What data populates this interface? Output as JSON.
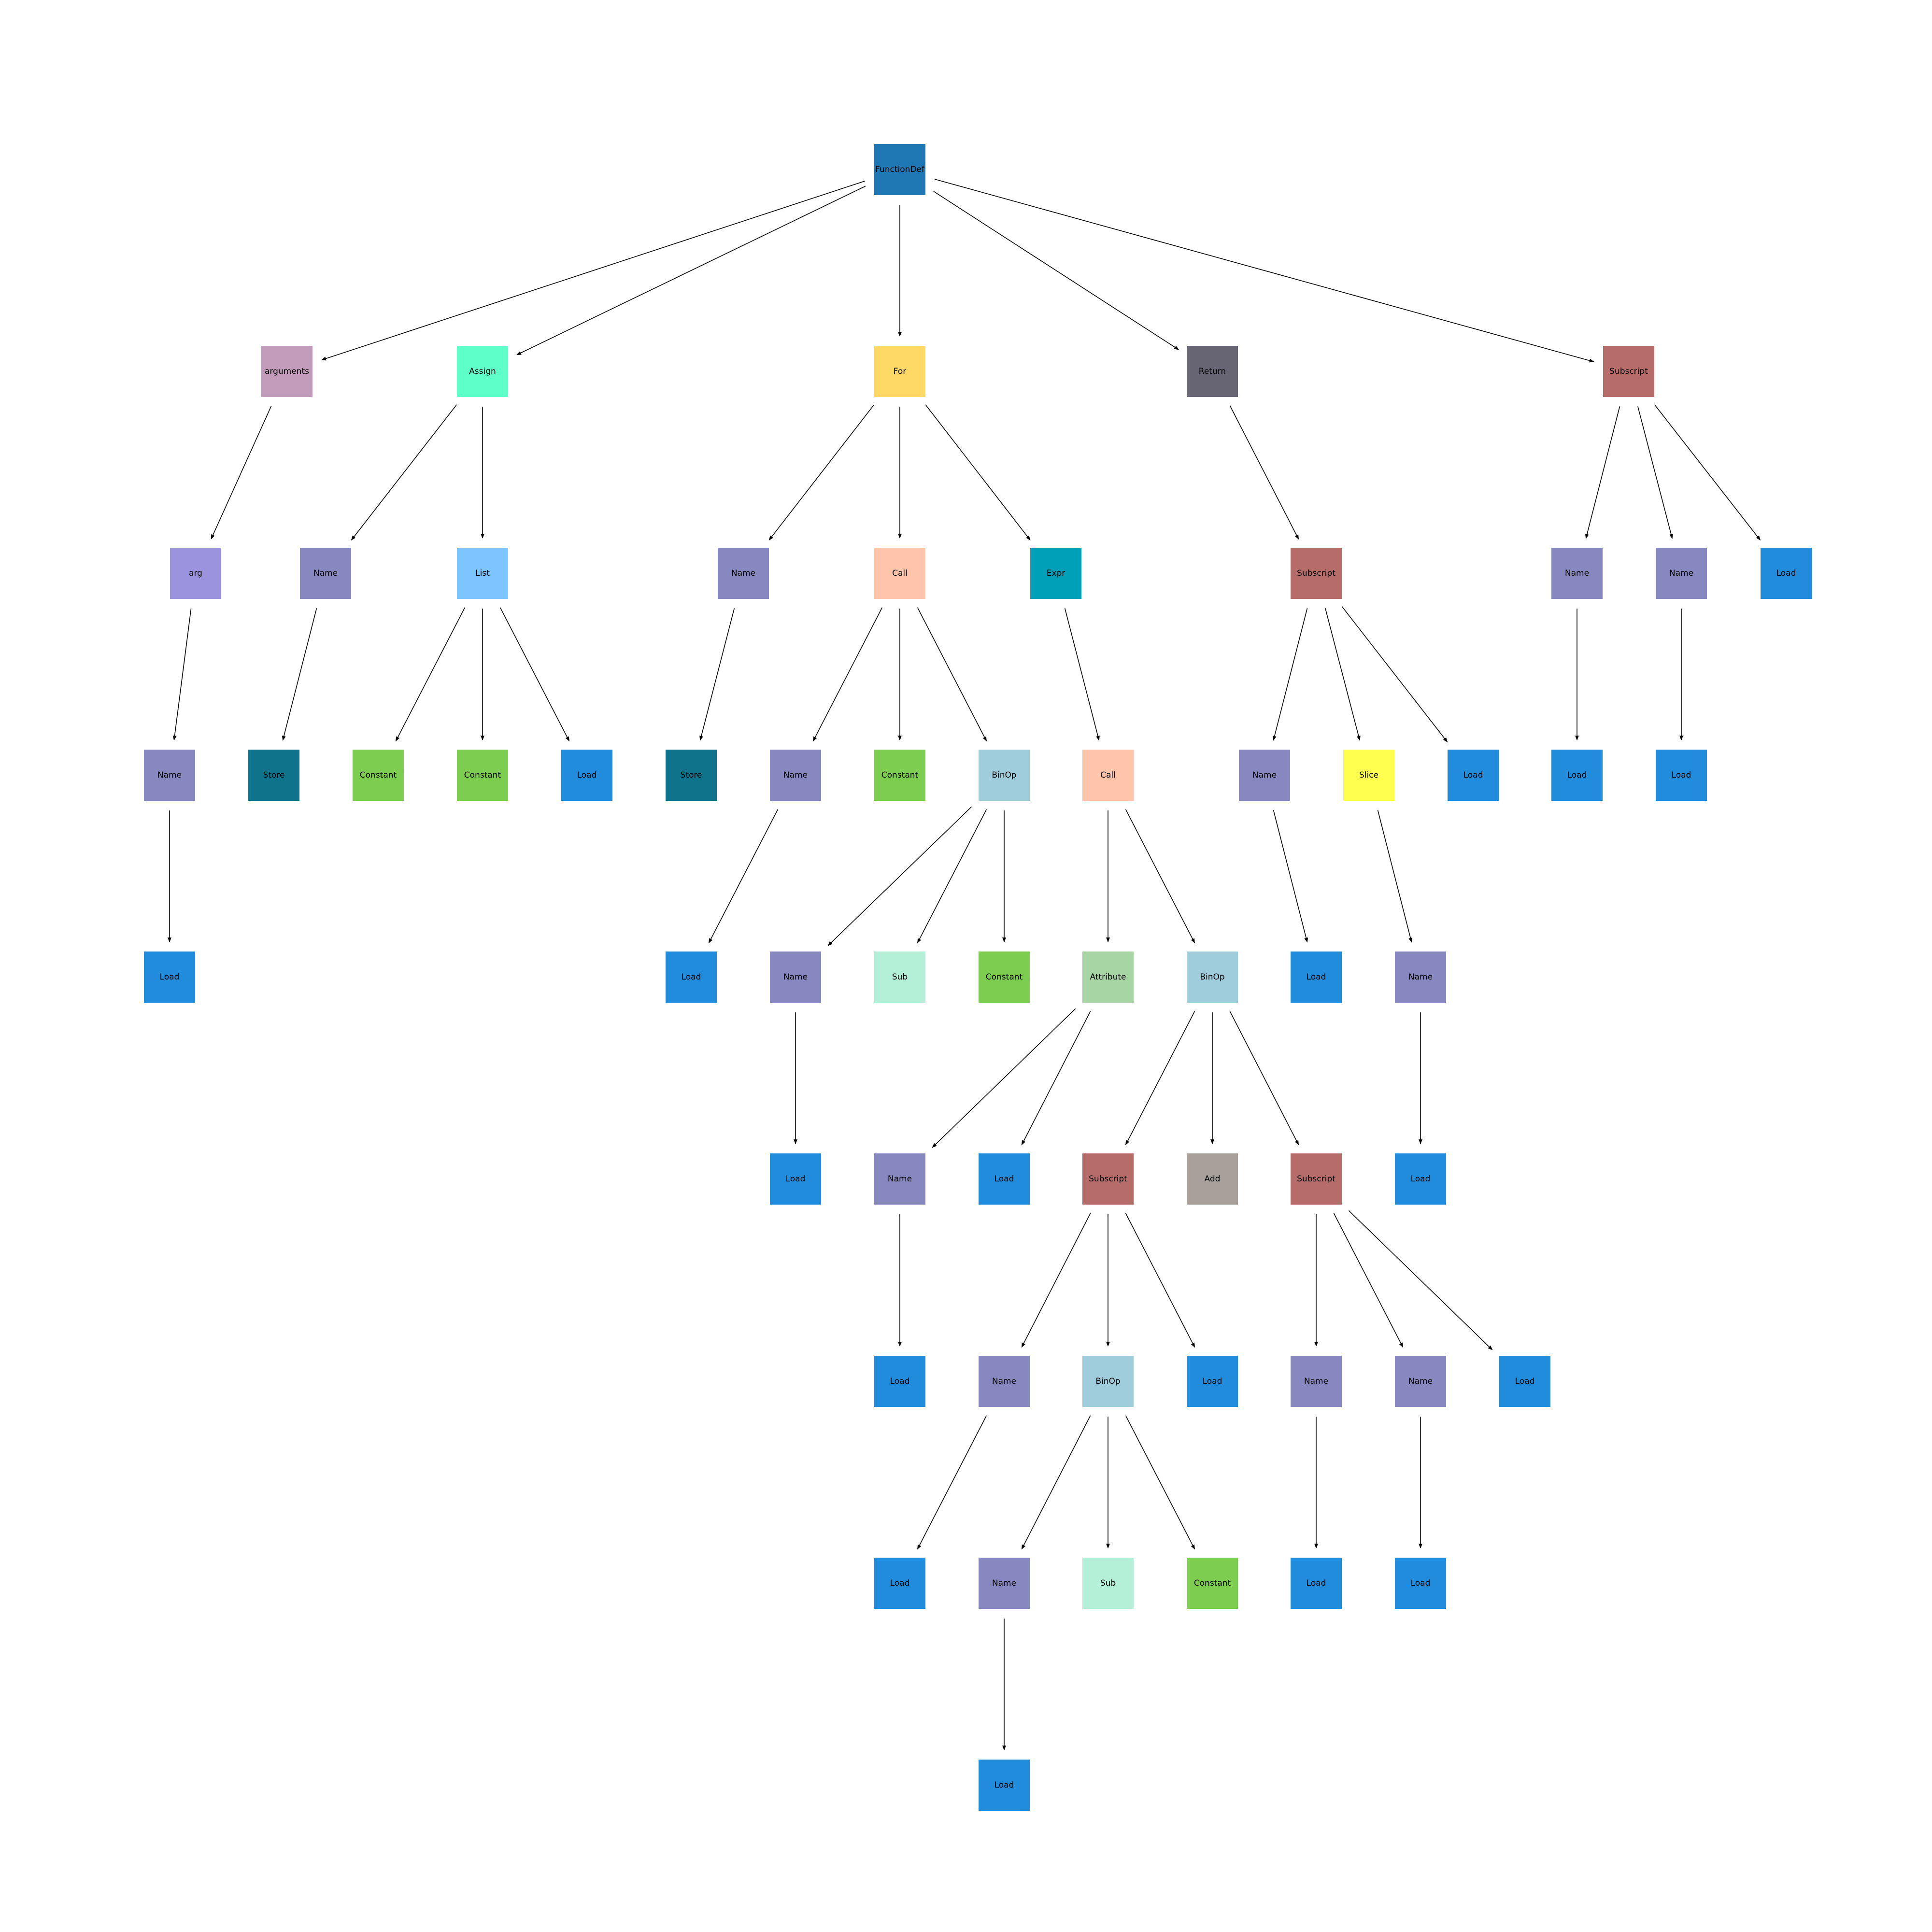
{
  "colors": {
    "FunctionDef": "#1f77b4",
    "arguments": "#c49cbb",
    "Assign": "#5effc8",
    "For": "#ffd966",
    "Return": "#676473",
    "Subscript": "#b66c69",
    "arg": "#9b93dd",
    "Name": "#8888c0",
    "List": "#7dc5ff",
    "Call": "#ffc5aa",
    "Expr": "#00a0b8",
    "Store": "#0f738c",
    "Constant": "#7dcd50",
    "Load": "#218cdc",
    "BinOp": "#a0cddc",
    "Slice": "#ffff50",
    "Sub": "#b4f0d7",
    "Attribute": "#a8d5a4",
    "Add": "#a8a19b",
    "edge": "#000000"
  },
  "nodes": [
    {
      "id": "n0",
      "label": "FunctionDef"
    },
    {
      "id": "n1",
      "label": "arguments",
      "parent": "n0"
    },
    {
      "id": "n2",
      "label": "Assign",
      "parent": "n0"
    },
    {
      "id": "n3",
      "label": "For",
      "parent": "n0"
    },
    {
      "id": "n4",
      "label": "Return",
      "parent": "n0"
    },
    {
      "id": "n5",
      "label": "Subscript",
      "parent": "n0"
    },
    {
      "id": "n6",
      "label": "arg",
      "parent": "n1"
    },
    {
      "id": "n7",
      "label": "Name",
      "parent": "n2"
    },
    {
      "id": "n8",
      "label": "List",
      "parent": "n2"
    },
    {
      "id": "n9",
      "label": "Name",
      "parent": "n3"
    },
    {
      "id": "n10",
      "label": "Call",
      "parent": "n3"
    },
    {
      "id": "n11",
      "label": "Expr",
      "parent": "n3"
    },
    {
      "id": "n12",
      "label": "Subscript",
      "parent": "n4"
    },
    {
      "id": "n13",
      "label": "Name",
      "parent": "n5"
    },
    {
      "id": "n14",
      "label": "Name",
      "parent": "n5"
    },
    {
      "id": "n15",
      "label": "Load",
      "parent": "n5"
    },
    {
      "id": "n16",
      "label": "Name",
      "parent": "n6"
    },
    {
      "id": "n17",
      "label": "Store",
      "parent": "n7"
    },
    {
      "id": "n18",
      "label": "Constant",
      "parent": "n8"
    },
    {
      "id": "n19",
      "label": "Constant",
      "parent": "n8"
    },
    {
      "id": "n20",
      "label": "Load",
      "parent": "n8"
    },
    {
      "id": "n21",
      "label": "Store",
      "parent": "n9"
    },
    {
      "id": "n22",
      "label": "Name",
      "parent": "n10"
    },
    {
      "id": "n23",
      "label": "Constant",
      "parent": "n10"
    },
    {
      "id": "n24",
      "label": "BinOp",
      "parent": "n10"
    },
    {
      "id": "n25",
      "label": "Call",
      "parent": "n11"
    },
    {
      "id": "n26",
      "label": "Name",
      "parent": "n12"
    },
    {
      "id": "n27",
      "label": "Slice",
      "parent": "n12"
    },
    {
      "id": "n28",
      "label": "Load",
      "parent": "n12"
    },
    {
      "id": "n29",
      "label": "Load",
      "parent": "n13"
    },
    {
      "id": "n30",
      "label": "Load",
      "parent": "n14"
    },
    {
      "id": "n31",
      "label": "Load",
      "parent": "n16"
    },
    {
      "id": "n32",
      "label": "Load",
      "parent": "n22"
    },
    {
      "id": "n33",
      "label": "Name",
      "parent": "n24"
    },
    {
      "id": "n34",
      "label": "Sub",
      "parent": "n24"
    },
    {
      "id": "n35",
      "label": "Constant",
      "parent": "n24"
    },
    {
      "id": "n36",
      "label": "Attribute",
      "parent": "n25"
    },
    {
      "id": "n37",
      "label": "BinOp",
      "parent": "n25"
    },
    {
      "id": "n38",
      "label": "Load",
      "parent": "n26"
    },
    {
      "id": "n39",
      "label": "Name",
      "parent": "n27"
    },
    {
      "id": "n40",
      "label": "Load",
      "parent": "n33"
    },
    {
      "id": "n41",
      "label": "Name",
      "parent": "n36"
    },
    {
      "id": "n42",
      "label": "Load",
      "parent": "n36"
    },
    {
      "id": "n43",
      "label": "Subscript",
      "parent": "n37"
    },
    {
      "id": "n44",
      "label": "Add",
      "parent": "n37"
    },
    {
      "id": "n45",
      "label": "Subscript",
      "parent": "n37"
    },
    {
      "id": "n46",
      "label": "Load",
      "parent": "n39"
    },
    {
      "id": "n47",
      "label": "Load",
      "parent": "n41"
    },
    {
      "id": "n48",
      "label": "Name",
      "parent": "n43"
    },
    {
      "id": "n49",
      "label": "BinOp",
      "parent": "n43"
    },
    {
      "id": "n50",
      "label": "Load",
      "parent": "n43"
    },
    {
      "id": "n51",
      "label": "Name",
      "parent": "n45"
    },
    {
      "id": "n52",
      "label": "Name",
      "parent": "n45"
    },
    {
      "id": "n53",
      "label": "Load",
      "parent": "n45"
    },
    {
      "id": "n54",
      "label": "Load",
      "parent": "n48"
    },
    {
      "id": "n55",
      "label": "Name",
      "parent": "n49"
    },
    {
      "id": "n56",
      "label": "Sub",
      "parent": "n49"
    },
    {
      "id": "n57",
      "label": "Constant",
      "parent": "n49"
    },
    {
      "id": "n58",
      "label": "Load",
      "parent": "n51"
    },
    {
      "id": "n59",
      "label": "Load",
      "parent": "n52"
    },
    {
      "id": "n60",
      "label": "Load",
      "parent": "n55"
    }
  ]
}
